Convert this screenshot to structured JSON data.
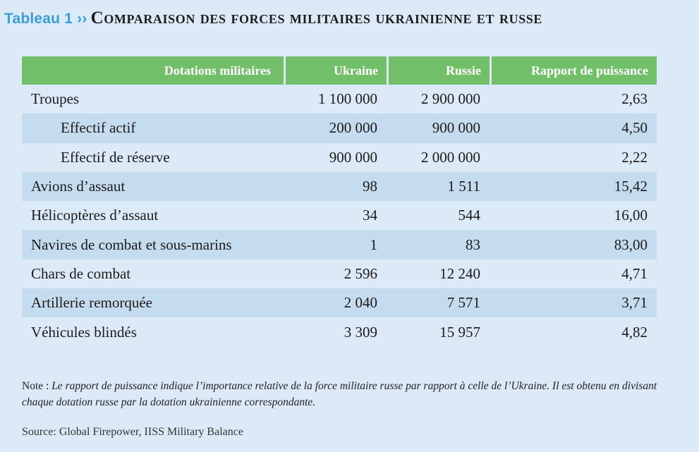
{
  "title": {
    "prefix": "Tableau 1 ››",
    "text": "Comparaison des forces militaires ukrainienne et russe"
  },
  "table": {
    "headers": [
      "Dotations militaires",
      "Ukraine",
      "Russie",
      "Rapport de puissance"
    ],
    "rows": [
      {
        "label": "Troupes",
        "ukraine": "1 100 000",
        "russie": "2 900 000",
        "rapport": "2,63"
      },
      {
        "label": "Effectif actif",
        "ukraine": "200 000",
        "russie": "900 000",
        "rapport": "4,50"
      },
      {
        "label": "Effectif de réserve",
        "ukraine": "900 000",
        "russie": "2 000 000",
        "rapport": "2,22"
      },
      {
        "label": "Avions d’assaut",
        "ukraine": "98",
        "russie": "1 511",
        "rapport": "15,42"
      },
      {
        "label": "Hélicoptères d’assaut",
        "ukraine": "34",
        "russie": "544",
        "rapport": "16,00"
      },
      {
        "label": "Navires de combat et sous-marins",
        "ukraine": "1",
        "russie": "83",
        "rapport": "83,00"
      },
      {
        "label": "Chars de combat",
        "ukraine": "2 596",
        "russie": "12 240",
        "rapport": "4,71"
      },
      {
        "label": "Artillerie remorquée",
        "ukraine": "2 040",
        "russie": "7 571",
        "rapport": "3,71"
      },
      {
        "label": "Véhicules blindés",
        "ukraine": "3 309",
        "russie": "15 957",
        "rapport": "4,82"
      }
    ]
  },
  "note": {
    "label": "Note :",
    "text": "Le rapport de puissance indique l’importance relative de la force militaire russe par rapport à celle de l’Ukraine. Il est obtenu en divisant chaque dotation russe par la dotation ukrainienne correspondante."
  },
  "source": "Source: Global Firepower, IISS Military Balance",
  "colors": {
    "background": "#dce9f6",
    "header_green": "#72bf69",
    "row_shade": "#c5dcef",
    "title_blue": "#3a9fd4"
  }
}
